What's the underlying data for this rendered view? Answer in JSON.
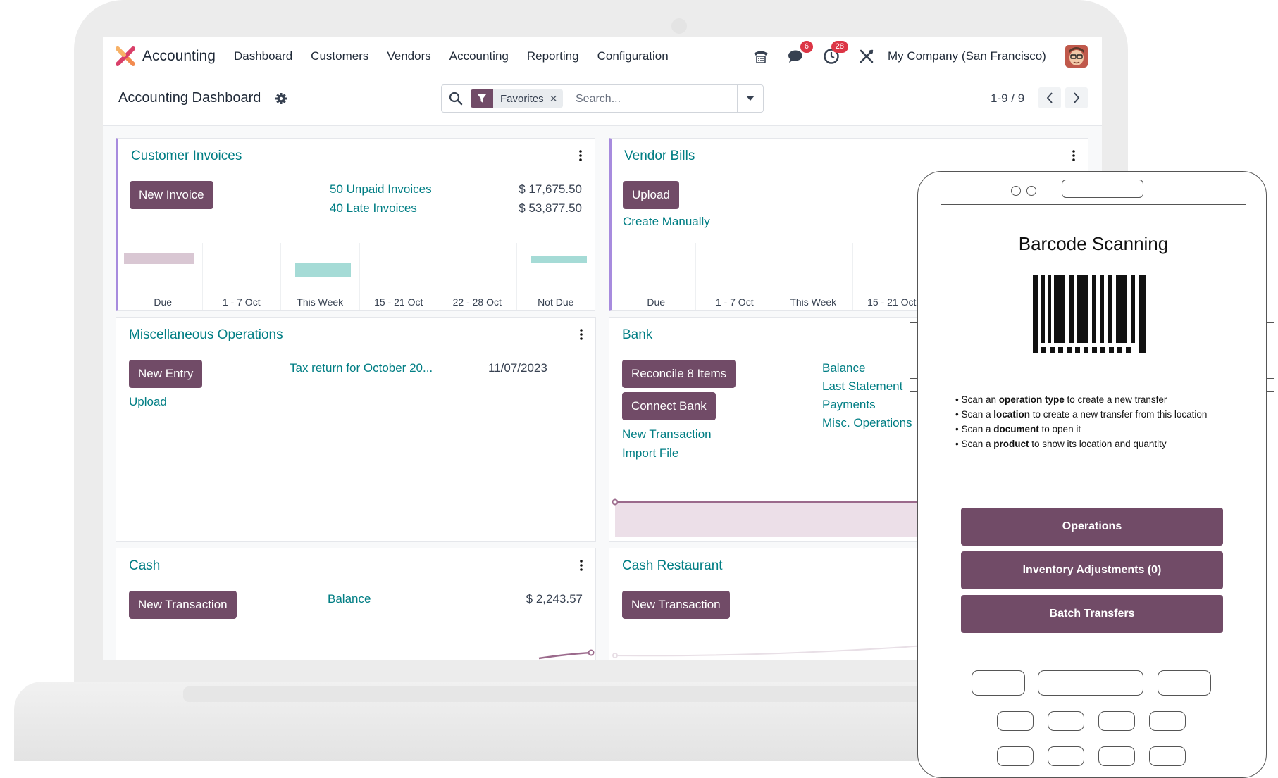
{
  "app": {
    "name": "Accounting"
  },
  "menu": [
    "Dashboard",
    "Customers",
    "Vendors",
    "Accounting",
    "Reporting",
    "Configuration"
  ],
  "systray": {
    "phone_icon": "phone-icon",
    "messages_badge": "6",
    "activities_badge": "28",
    "company": "My Company (San Francisco)"
  },
  "control": {
    "title": "Accounting Dashboard",
    "facet": "Favorites",
    "search_placeholder": "Search...",
    "pager": "1-9 / 9"
  },
  "cards": {
    "customer_invoices": {
      "title": "Customer Invoices",
      "button": "New Invoice",
      "links": [
        {
          "label": "50 Unpaid Invoices",
          "amount": "$ 17,675.50"
        },
        {
          "label": "40 Late Invoices",
          "amount": "$ 53,877.50"
        }
      ],
      "chart_labels": [
        "Due",
        "1 - 7 Oct",
        "This Week",
        "15 - 21 Oct",
        "22 - 28 Oct",
        "Not Due"
      ]
    },
    "vendor_bills": {
      "title": "Vendor Bills",
      "button": "Upload",
      "link": "Create Manually",
      "chart_labels": [
        "Due",
        "1 - 7 Oct",
        "This Week",
        "15 - 21 Oct"
      ]
    },
    "misc": {
      "title": "Miscellaneous Operations",
      "button": "New Entry",
      "link": "Upload",
      "item_label": "Tax return for October 20...",
      "item_date": "11/07/2023"
    },
    "bank": {
      "title": "Bank",
      "buttons": [
        "Reconcile 8 Items",
        "Connect Bank"
      ],
      "links": [
        "New Transaction",
        "Import File"
      ],
      "stats": [
        "Balance",
        "Last Statement",
        "Payments",
        "Misc. Operations"
      ]
    },
    "cash": {
      "title": "Cash",
      "button": "New Transaction",
      "balance_label": "Balance",
      "balance_value": "$ 2,243.57"
    },
    "cash_restaurant": {
      "title": "Cash Restaurant",
      "button": "New Transaction"
    }
  },
  "phone": {
    "title": "Barcode Scanning",
    "hints": [
      {
        "pre": "Scan an ",
        "bold": "operation type",
        "post": " to create a new transfer"
      },
      {
        "pre": "Scan a ",
        "bold": "location",
        "post": " to create a new transfer from this location"
      },
      {
        "pre": "Scan a ",
        "bold": "document",
        "post": " to open it"
      },
      {
        "pre": "Scan a ",
        "bold": "product",
        "post": " to show its location and quantity"
      }
    ],
    "buttons": [
      "Operations",
      "Inventory Adjustments (0)",
      "Batch Transfers"
    ]
  },
  "colors": {
    "brand": "#714b67",
    "link": "#017e84",
    "accent": "#a78bde",
    "badge": "#dc3545"
  }
}
